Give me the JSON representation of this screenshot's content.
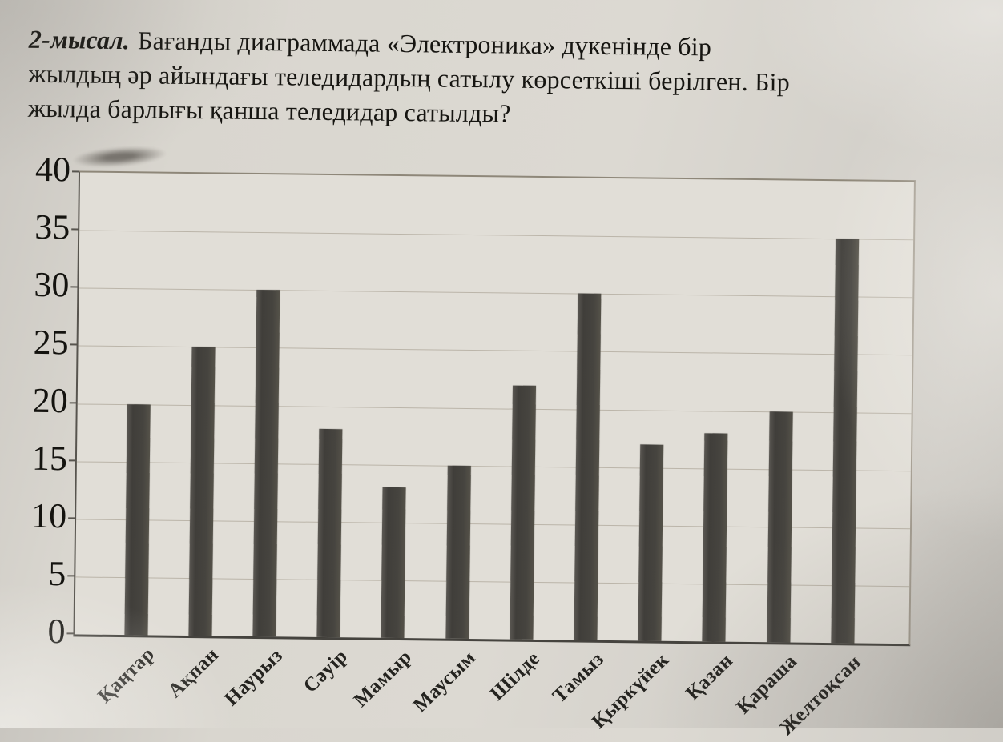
{
  "question": {
    "example_label": "2-мысал.",
    "line1_rest": "Бағанды диаграммада «Электроника» дүкенінде бір",
    "line2": "жылдың әр айындағы теледидардың сатылу көрсеткіші берілген. Бір",
    "line3": "жылда барлығы қанша теледидар сатылды?"
  },
  "chart_data": {
    "type": "bar",
    "title": "",
    "xlabel": "",
    "ylabel": "",
    "categories": [
      "Қаңтар",
      "Ақпан",
      "Наурыз",
      "Сәуір",
      "Мамыр",
      "Маусым",
      "Шілде",
      "Тамыз",
      "Қыркүйек",
      "Қазан",
      "Қараша",
      "Желтоқсан"
    ],
    "values": [
      20,
      25,
      30,
      18,
      13,
      15,
      22,
      30,
      17,
      18,
      20,
      35
    ],
    "ylim": [
      0,
      40
    ],
    "yticks": [
      0,
      5,
      10,
      15,
      20,
      25,
      30,
      35,
      40
    ],
    "grid": "horizontal",
    "legend": "none",
    "bar_color": "#46443f",
    "paper_color": "#d9d6cf",
    "gridline_color": "#b2aa9d",
    "text_color": "#161511"
  }
}
